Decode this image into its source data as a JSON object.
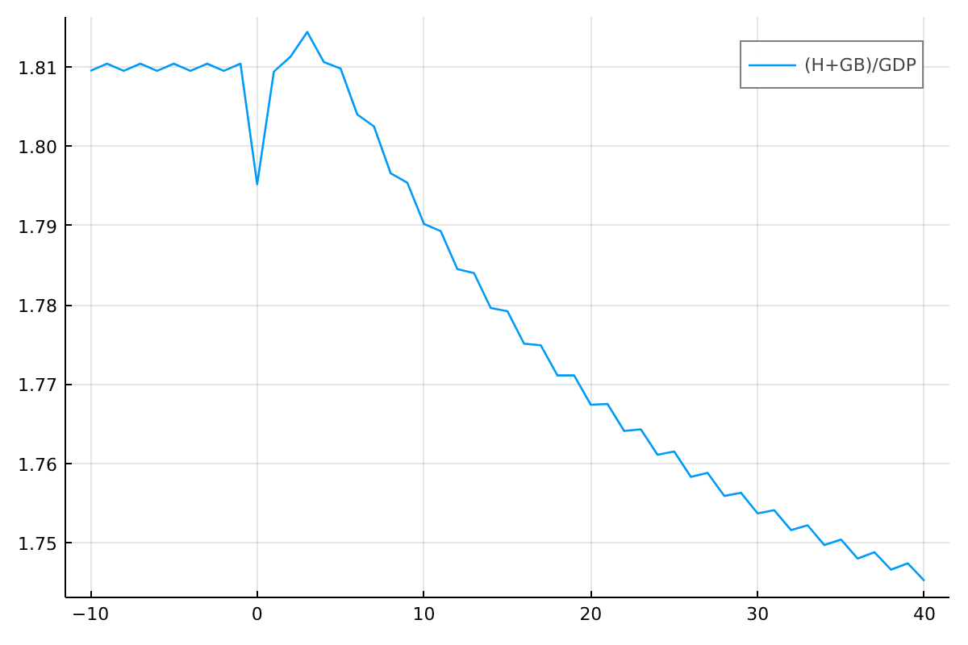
{
  "chart_data": {
    "type": "line",
    "x": [
      -10,
      -9,
      -8,
      -7,
      -6,
      -5,
      -4,
      -3,
      -2,
      -1,
      0,
      1,
      2,
      3,
      4,
      5,
      6,
      7,
      8,
      9,
      10,
      11,
      12,
      13,
      14,
      15,
      16,
      17,
      18,
      19,
      20,
      21,
      22,
      23,
      24,
      25,
      26,
      27,
      28,
      29,
      30,
      31,
      32,
      33,
      34,
      35,
      36,
      37,
      38,
      39,
      40
    ],
    "series": [
      {
        "name": "(H+GB)/GDP",
        "color": "#009af9",
        "values": [
          1.8095,
          1.8104,
          1.8095,
          1.8104,
          1.8095,
          1.8104,
          1.8095,
          1.8104,
          1.8095,
          1.8104,
          1.7952,
          1.8094,
          1.8113,
          1.8144,
          1.8106,
          1.8098,
          1.804,
          1.8025,
          1.7966,
          1.7954,
          1.7902,
          1.7893,
          1.7845,
          1.784,
          1.7796,
          1.7792,
          1.7751,
          1.7749,
          1.7711,
          1.7711,
          1.7674,
          1.7675,
          1.7641,
          1.7643,
          1.7611,
          1.7615,
          1.7583,
          1.7588,
          1.7559,
          1.7563,
          1.7537,
          1.7541,
          1.7516,
          1.7522,
          1.7497,
          1.7504,
          1.748,
          1.7488,
          1.7466,
          1.7474,
          1.7452
        ]
      }
    ],
    "xlim": [
      -11.5,
      41.5
    ],
    "ylim": [
      1.7431,
      1.8163
    ],
    "xticks": [
      {
        "value": -10,
        "label": "−10"
      },
      0,
      10,
      20,
      30,
      40
    ],
    "yticks": [
      {
        "value": 1.75,
        "label": "1.75"
      },
      {
        "value": 1.76,
        "label": "1.76"
      },
      {
        "value": 1.77,
        "label": "1.77"
      },
      {
        "value": 1.78,
        "label": "1.78"
      },
      {
        "value": 1.79,
        "label": "1.79"
      },
      {
        "value": 1.8,
        "label": "1.80"
      },
      {
        "value": 1.81,
        "label": "1.81"
      }
    ],
    "grid": true,
    "legend": "top right",
    "line_style": "solid"
  }
}
